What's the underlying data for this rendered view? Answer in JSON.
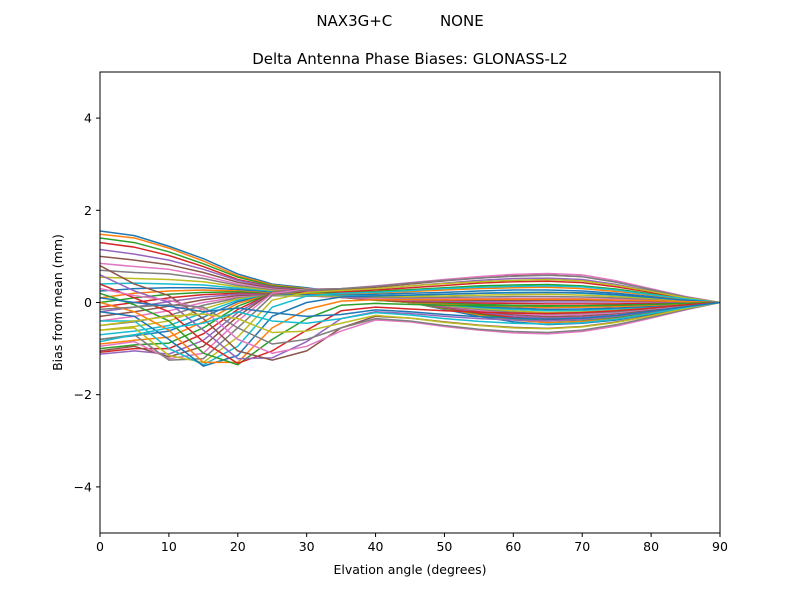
{
  "chart_data": {
    "type": "line",
    "suptitle": "NAX3G+C          NONE",
    "title": "Delta Antenna Phase Biases: GLONASS-L2",
    "xlabel": "Elvation angle (degrees)",
    "ylabel": "Bias from mean (mm)",
    "xlim": [
      0,
      90
    ],
    "ylim": [
      -5,
      5
    ],
    "xticks": [
      0,
      10,
      20,
      30,
      40,
      50,
      60,
      70,
      80,
      90
    ],
    "yticks": [
      -4,
      -2,
      0,
      2,
      4
    ],
    "ytick_labels": [
      "−4",
      "−2",
      "0",
      "2",
      "4"
    ],
    "grid": false,
    "x": [
      0,
      5,
      10,
      15,
      20,
      25,
      30,
      35,
      40,
      45,
      50,
      55,
      60,
      65,
      70,
      75,
      80,
      85,
      90
    ],
    "colors": [
      "#1f77b4",
      "#ff7f0e",
      "#2ca02c",
      "#d62728",
      "#9467bd",
      "#8c564b",
      "#e377c2",
      "#7f7f7f",
      "#bcbd22",
      "#17becf"
    ],
    "series": [
      {
        "values": [
          1.55,
          1.45,
          1.22,
          0.95,
          0.62,
          0.4,
          0.32,
          0.22,
          0.1,
          0.0,
          -0.15,
          -0.3,
          -0.42,
          -0.48,
          -0.45,
          -0.38,
          -0.25,
          -0.12,
          0.0
        ]
      },
      {
        "values": [
          1.48,
          1.4,
          1.18,
          0.9,
          0.58,
          0.38,
          0.3,
          0.21,
          0.1,
          0.0,
          -0.13,
          -0.27,
          -0.38,
          -0.44,
          -0.41,
          -0.35,
          -0.23,
          -0.11,
          0.0
        ]
      },
      {
        "values": [
          1.4,
          1.3,
          1.1,
          0.84,
          0.55,
          0.36,
          0.29,
          0.2,
          0.09,
          0.0,
          -0.12,
          -0.25,
          -0.35,
          -0.4,
          -0.38,
          -0.32,
          -0.21,
          -0.1,
          0.0
        ]
      },
      {
        "values": [
          1.3,
          1.2,
          1.02,
          0.78,
          0.5,
          0.34,
          0.27,
          0.19,
          0.09,
          0.0,
          -0.11,
          -0.23,
          -0.32,
          -0.37,
          -0.35,
          -0.29,
          -0.19,
          -0.09,
          0.0
        ]
      },
      {
        "values": [
          1.15,
          1.05,
          0.92,
          0.72,
          0.48,
          0.33,
          0.26,
          0.18,
          0.08,
          0.0,
          -0.1,
          -0.21,
          -0.29,
          -0.34,
          -0.32,
          -0.27,
          -0.18,
          -0.09,
          0.0
        ]
      },
      {
        "values": [
          1.0,
          0.92,
          0.82,
          0.65,
          0.44,
          0.31,
          0.25,
          0.17,
          0.08,
          0.0,
          -0.09,
          -0.19,
          -0.26,
          -0.31,
          -0.29,
          -0.24,
          -0.16,
          -0.08,
          0.0
        ]
      },
      {
        "values": [
          0.85,
          0.78,
          0.72,
          0.58,
          0.4,
          0.29,
          0.23,
          0.16,
          0.07,
          0.0,
          -0.08,
          -0.17,
          -0.24,
          -0.28,
          -0.26,
          -0.22,
          -0.14,
          -0.07,
          0.0
        ]
      },
      {
        "values": [
          0.7,
          0.65,
          0.62,
          0.52,
          0.37,
          0.27,
          0.22,
          0.15,
          0.07,
          0.0,
          -0.07,
          -0.15,
          -0.21,
          -0.25,
          -0.23,
          -0.2,
          -0.13,
          -0.06,
          0.0
        ]
      },
      {
        "values": [
          0.55,
          0.52,
          0.5,
          0.45,
          0.34,
          0.25,
          0.2,
          0.14,
          0.06,
          0.0,
          -0.06,
          -0.13,
          -0.18,
          -0.22,
          -0.2,
          -0.17,
          -0.11,
          -0.05,
          0.0
        ]
      },
      {
        "values": [
          0.4,
          0.42,
          0.4,
          0.38,
          0.31,
          0.23,
          0.19,
          0.13,
          0.06,
          0.0,
          -0.05,
          -0.11,
          -0.15,
          -0.18,
          -0.17,
          -0.14,
          -0.09,
          -0.04,
          0.0
        ]
      },
      {
        "values": [
          0.25,
          0.3,
          0.32,
          0.32,
          0.28,
          0.22,
          0.18,
          0.12,
          0.05,
          0.0,
          -0.04,
          -0.09,
          -0.12,
          -0.15,
          -0.14,
          -0.12,
          -0.08,
          -0.04,
          0.0
        ]
      },
      {
        "values": [
          0.1,
          0.2,
          0.25,
          0.27,
          0.25,
          0.2,
          0.17,
          0.11,
          0.05,
          0.0,
          -0.03,
          -0.07,
          -0.09,
          -0.11,
          -0.1,
          -0.09,
          -0.06,
          -0.03,
          0.0
        ]
      },
      {
        "values": [
          0.0,
          0.1,
          0.18,
          0.22,
          0.23,
          0.19,
          0.16,
          0.11,
          0.05,
          0.01,
          -0.01,
          -0.04,
          -0.06,
          -0.07,
          -0.07,
          -0.06,
          -0.04,
          -0.02,
          0.0
        ]
      },
      {
        "values": [
          -0.1,
          0.0,
          0.1,
          0.17,
          0.2,
          0.18,
          0.15,
          0.11,
          0.06,
          0.02,
          0.01,
          -0.01,
          -0.02,
          -0.03,
          -0.03,
          -0.03,
          -0.02,
          -0.01,
          0.0
        ]
      },
      {
        "values": [
          -0.2,
          -0.1,
          0.02,
          0.12,
          0.18,
          0.17,
          0.15,
          0.11,
          0.07,
          0.04,
          0.03,
          0.02,
          0.02,
          0.01,
          0.01,
          0.01,
          0.01,
          0.0,
          0.0
        ]
      },
      {
        "values": [
          -0.3,
          -0.2,
          -0.08,
          0.06,
          0.15,
          0.16,
          0.14,
          0.12,
          0.08,
          0.06,
          0.05,
          0.05,
          0.05,
          0.05,
          0.05,
          0.04,
          0.03,
          0.01,
          0.0
        ]
      },
      {
        "values": [
          -0.4,
          -0.3,
          -0.18,
          0.0,
          0.12,
          0.15,
          0.14,
          0.12,
          0.09,
          0.08,
          0.08,
          0.08,
          0.09,
          0.09,
          0.08,
          0.07,
          0.05,
          0.02,
          0.0
        ]
      },
      {
        "values": [
          -0.5,
          -0.42,
          -0.28,
          -0.06,
          0.1,
          0.15,
          0.14,
          0.13,
          0.11,
          0.1,
          0.11,
          0.12,
          0.13,
          0.13,
          0.12,
          0.1,
          0.07,
          0.03,
          0.0
        ]
      },
      {
        "values": [
          -0.6,
          -0.52,
          -0.4,
          -0.14,
          0.08,
          0.16,
          0.15,
          0.14,
          0.13,
          0.13,
          0.14,
          0.16,
          0.17,
          0.18,
          0.16,
          0.13,
          0.09,
          0.04,
          0.0
        ]
      },
      {
        "values": [
          -0.7,
          -0.62,
          -0.5,
          -0.22,
          0.05,
          0.17,
          0.17,
          0.16,
          0.15,
          0.16,
          0.18,
          0.2,
          0.22,
          0.22,
          0.2,
          0.16,
          0.11,
          0.05,
          0.0
        ]
      },
      {
        "values": [
          -0.8,
          -0.72,
          -0.62,
          -0.32,
          0.02,
          0.18,
          0.18,
          0.17,
          0.18,
          0.2,
          0.22,
          0.25,
          0.27,
          0.27,
          0.25,
          0.2,
          0.13,
          0.06,
          0.0
        ]
      },
      {
        "values": [
          -0.9,
          -0.82,
          -0.75,
          -0.42,
          -0.02,
          0.19,
          0.2,
          0.19,
          0.21,
          0.24,
          0.27,
          0.3,
          0.32,
          0.33,
          0.3,
          0.24,
          0.16,
          0.07,
          0.0
        ]
      },
      {
        "values": [
          -1.0,
          -0.92,
          -0.88,
          -0.55,
          -0.08,
          0.2,
          0.22,
          0.21,
          0.24,
          0.28,
          0.32,
          0.36,
          0.38,
          0.39,
          0.36,
          0.29,
          0.19,
          0.09,
          0.0
        ]
      },
      {
        "values": [
          -1.08,
          -1.0,
          -1.0,
          -0.68,
          -0.15,
          0.2,
          0.24,
          0.23,
          0.27,
          0.32,
          0.37,
          0.42,
          0.45,
          0.46,
          0.43,
          0.34,
          0.22,
          0.1,
          0.0
        ]
      },
      {
        "values": [
          -1.12,
          -1.05,
          -1.12,
          -0.82,
          -0.22,
          0.21,
          0.26,
          0.26,
          0.3,
          0.36,
          0.42,
          0.48,
          0.52,
          0.53,
          0.5,
          0.39,
          0.25,
          0.11,
          0.0
        ]
      },
      {
        "values": [
          -1.05,
          -0.95,
          -1.18,
          -0.95,
          -0.3,
          0.22,
          0.28,
          0.28,
          0.33,
          0.4,
          0.47,
          0.53,
          0.58,
          0.6,
          0.56,
          0.44,
          0.28,
          0.12,
          0.0
        ]
      },
      {
        "values": [
          -0.95,
          -0.85,
          -1.22,
          -1.1,
          -0.4,
          0.2,
          0.29,
          0.3,
          0.36,
          0.43,
          0.5,
          0.56,
          0.61,
          0.63,
          0.6,
          0.47,
          0.3,
          0.13,
          0.0
        ]
      },
      {
        "values": [
          -0.8,
          -0.7,
          -1.25,
          -1.22,
          -0.55,
          0.15,
          0.28,
          0.3,
          0.35,
          0.42,
          0.48,
          0.53,
          0.57,
          0.59,
          0.56,
          0.44,
          0.28,
          0.12,
          0.0
        ]
      },
      {
        "values": [
          -0.6,
          -0.55,
          -1.15,
          -1.3,
          -0.75,
          0.05,
          0.22,
          0.26,
          0.3,
          0.36,
          0.41,
          0.45,
          0.48,
          0.5,
          0.47,
          0.37,
          0.24,
          0.1,
          0.0
        ]
      },
      {
        "values": [
          -0.4,
          -0.4,
          -1.0,
          -1.35,
          -0.95,
          -0.1,
          0.14,
          0.2,
          0.22,
          0.26,
          0.3,
          0.33,
          0.35,
          0.36,
          0.34,
          0.27,
          0.17,
          0.08,
          0.0
        ]
      },
      {
        "values": [
          -0.2,
          -0.3,
          -0.8,
          -1.38,
          -1.15,
          -0.3,
          0.0,
          0.12,
          0.14,
          0.16,
          0.18,
          0.2,
          0.21,
          0.22,
          0.21,
          0.17,
          0.11,
          0.05,
          0.0
        ]
      },
      {
        "values": [
          0.0,
          -0.2,
          -0.6,
          -1.3,
          -1.3,
          -0.55,
          -0.15,
          0.03,
          0.06,
          0.06,
          0.06,
          0.07,
          0.07,
          0.07,
          0.07,
          0.05,
          0.04,
          0.02,
          0.0
        ]
      },
      {
        "values": [
          0.2,
          -0.05,
          -0.4,
          -1.1,
          -1.35,
          -0.8,
          -0.35,
          -0.06,
          -0.02,
          -0.04,
          -0.06,
          -0.07,
          -0.07,
          -0.08,
          -0.07,
          -0.06,
          -0.04,
          -0.02,
          0.0
        ]
      },
      {
        "values": [
          0.4,
          0.1,
          -0.2,
          -0.85,
          -1.32,
          -1.05,
          -0.6,
          -0.18,
          -0.1,
          -0.14,
          -0.18,
          -0.21,
          -0.23,
          -0.24,
          -0.22,
          -0.18,
          -0.12,
          -0.05,
          0.0
        ]
      },
      {
        "values": [
          0.6,
          0.25,
          0.0,
          -0.6,
          -1.22,
          -1.2,
          -0.85,
          -0.35,
          -0.2,
          -0.24,
          -0.3,
          -0.35,
          -0.38,
          -0.4,
          -0.37,
          -0.3,
          -0.2,
          -0.09,
          0.0
        ]
      },
      {
        "values": [
          0.8,
          0.4,
          0.15,
          -0.35,
          -1.05,
          -1.25,
          -1.05,
          -0.55,
          -0.3,
          -0.34,
          -0.42,
          -0.49,
          -0.54,
          -0.56,
          -0.52,
          -0.42,
          -0.28,
          -0.13,
          0.0
        ]
      },
      {
        "values": [
          0.3,
          0.15,
          0.05,
          -0.15,
          -0.8,
          -1.1,
          -0.95,
          -0.62,
          -0.38,
          -0.42,
          -0.52,
          -0.6,
          -0.66,
          -0.68,
          -0.63,
          -0.51,
          -0.34,
          -0.16,
          0.0
        ]
      },
      {
        "values": [
          -0.15,
          -0.1,
          -0.05,
          -0.1,
          -0.55,
          -0.9,
          -0.8,
          -0.55,
          -0.35,
          -0.4,
          -0.5,
          -0.58,
          -0.63,
          -0.65,
          -0.6,
          -0.48,
          -0.32,
          -0.15,
          0.0
        ]
      },
      {
        "values": [
          -0.5,
          -0.4,
          -0.3,
          -0.25,
          -0.35,
          -0.65,
          -0.62,
          -0.45,
          -0.28,
          -0.34,
          -0.43,
          -0.5,
          -0.55,
          -0.57,
          -0.53,
          -0.43,
          -0.29,
          -0.13,
          0.0
        ]
      },
      {
        "values": [
          -0.85,
          -0.7,
          -0.55,
          -0.45,
          -0.2,
          -0.4,
          -0.45,
          -0.35,
          -0.22,
          -0.27,
          -0.35,
          -0.41,
          -0.45,
          -0.47,
          -0.44,
          -0.36,
          -0.24,
          -0.11,
          0.0
        ]
      },
      {
        "values": [
          0.1,
          0.0,
          -0.08,
          -0.2,
          -0.12,
          -0.22,
          -0.3,
          -0.26,
          -0.16,
          -0.2,
          -0.26,
          -0.31,
          -0.34,
          -0.36,
          -0.34,
          -0.28,
          -0.19,
          -0.09,
          0.0
        ]
      }
    ]
  }
}
